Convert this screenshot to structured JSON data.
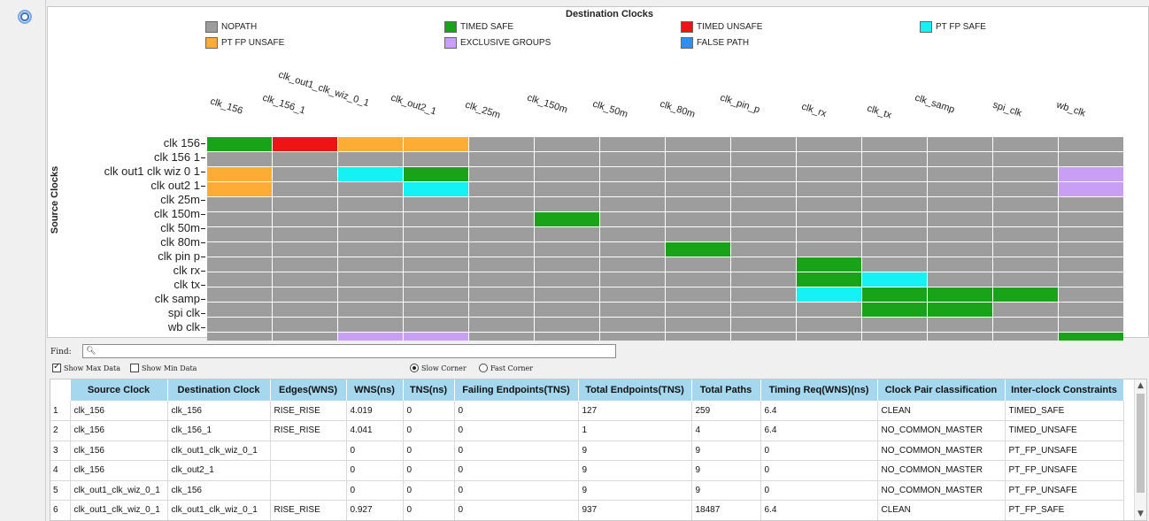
{
  "colors": {
    "nopath": "#9d9d9d",
    "timed_safe": "#18a319",
    "timed_unsafe": "#ef1414",
    "pt_fp_safe": "#14f2f5",
    "pt_fp_unsafe": "#fdad35",
    "exclusive_groups": "#c89ff5",
    "false_path": "#2e8ff0"
  },
  "legend": {
    "title": "Destination Clocks",
    "items": [
      {
        "key": "nopath",
        "label": "NOPATH"
      },
      {
        "key": "timed_safe",
        "label": "TIMED SAFE"
      },
      {
        "key": "timed_unsafe",
        "label": "TIMED UNSAFE"
      },
      {
        "key": "pt_fp_safe",
        "label": "PT FP SAFE"
      },
      {
        "key": "pt_fp_unsafe",
        "label": "PT FP UNSAFE"
      },
      {
        "key": "exclusive_groups",
        "label": "EXCLUSIVE GROUPS"
      },
      {
        "key": "false_path",
        "label": "FALSE PATH"
      }
    ]
  },
  "matrix": {
    "y_title": "Source Clocks",
    "columns": [
      "clk_156",
      "clk_156_1",
      "clk_out1_clk_wiz_0_1",
      "clk_out2_1",
      "clk_25m",
      "clk_150m",
      "clk_50m",
      "clk_80m",
      "clk_pin_p",
      "clk_rx",
      "clk_tx",
      "clk_samp",
      "spi_clk",
      "wb_clk"
    ],
    "rows": [
      "clk 156",
      "clk 156 1",
      "clk out1 clk wiz 0 1",
      "clk out2 1",
      "clk 25m",
      "clk 150m",
      "clk 50m",
      "clk 80m",
      "clk pin p",
      "clk rx",
      "clk tx",
      "clk samp",
      "spi clk",
      "wb clk"
    ],
    "cells": [
      [
        "timed_safe",
        "timed_unsafe",
        "pt_fp_unsafe",
        "pt_fp_unsafe",
        "nopath",
        "nopath",
        "nopath",
        "nopath",
        "nopath",
        "nopath",
        "nopath",
        "nopath",
        "nopath",
        "nopath"
      ],
      [
        "nopath",
        "nopath",
        "nopath",
        "nopath",
        "nopath",
        "nopath",
        "nopath",
        "nopath",
        "nopath",
        "nopath",
        "nopath",
        "nopath",
        "nopath",
        "nopath"
      ],
      [
        "pt_fp_unsafe",
        "nopath",
        "pt_fp_safe",
        "timed_safe",
        "nopath",
        "nopath",
        "nopath",
        "nopath",
        "nopath",
        "nopath",
        "nopath",
        "nopath",
        "nopath",
        "exclusive_groups"
      ],
      [
        "pt_fp_unsafe",
        "nopath",
        "nopath",
        "pt_fp_safe",
        "nopath",
        "nopath",
        "nopath",
        "nopath",
        "nopath",
        "nopath",
        "nopath",
        "nopath",
        "nopath",
        "exclusive_groups"
      ],
      [
        "nopath",
        "nopath",
        "nopath",
        "nopath",
        "nopath",
        "nopath",
        "nopath",
        "nopath",
        "nopath",
        "nopath",
        "nopath",
        "nopath",
        "nopath",
        "nopath"
      ],
      [
        "nopath",
        "nopath",
        "nopath",
        "nopath",
        "nopath",
        "timed_safe",
        "nopath",
        "nopath",
        "nopath",
        "nopath",
        "nopath",
        "nopath",
        "nopath",
        "nopath"
      ],
      [
        "nopath",
        "nopath",
        "nopath",
        "nopath",
        "nopath",
        "nopath",
        "nopath",
        "nopath",
        "nopath",
        "nopath",
        "nopath",
        "nopath",
        "nopath",
        "nopath"
      ],
      [
        "nopath",
        "nopath",
        "nopath",
        "nopath",
        "nopath",
        "nopath",
        "nopath",
        "timed_safe",
        "nopath",
        "nopath",
        "nopath",
        "nopath",
        "nopath",
        "nopath"
      ],
      [
        "nopath",
        "nopath",
        "nopath",
        "nopath",
        "nopath",
        "nopath",
        "nopath",
        "nopath",
        "nopath",
        "timed_safe",
        "nopath",
        "nopath",
        "nopath",
        "nopath"
      ],
      [
        "nopath",
        "nopath",
        "nopath",
        "nopath",
        "nopath",
        "nopath",
        "nopath",
        "nopath",
        "nopath",
        "timed_safe",
        "pt_fp_safe",
        "nopath",
        "nopath",
        "nopath"
      ],
      [
        "nopath",
        "nopath",
        "nopath",
        "nopath",
        "nopath",
        "nopath",
        "nopath",
        "nopath",
        "nopath",
        "pt_fp_safe",
        "timed_safe",
        "timed_safe",
        "timed_safe",
        "nopath"
      ],
      [
        "nopath",
        "nopath",
        "nopath",
        "nopath",
        "nopath",
        "nopath",
        "nopath",
        "nopath",
        "nopath",
        "nopath",
        "timed_safe",
        "timed_safe",
        "nopath",
        "nopath"
      ],
      [
        "nopath",
        "nopath",
        "nopath",
        "nopath",
        "nopath",
        "nopath",
        "nopath",
        "nopath",
        "nopath",
        "nopath",
        "nopath",
        "nopath",
        "nopath",
        "nopath"
      ],
      [
        "nopath",
        "nopath",
        "exclusive_groups",
        "exclusive_groups",
        "nopath",
        "nopath",
        "nopath",
        "nopath",
        "nopath",
        "nopath",
        "nopath",
        "nopath",
        "nopath",
        "timed_safe"
      ]
    ]
  },
  "filters": {
    "find_label": "Find:",
    "find_value": "",
    "show_max_label": "Show Max Data",
    "show_max_checked": true,
    "show_min_label": "Show Min Data",
    "show_min_checked": false,
    "slow_corner_label": "Slow Corner",
    "fast_corner_label": "Fast Corner",
    "selected_corner": "slow"
  },
  "table": {
    "headers": [
      "Source Clock",
      "Destination Clock",
      "Edges(WNS)",
      "WNS(ns)",
      "TNS(ns)",
      "Failing Endpoints(TNS)",
      "Total Endpoints(TNS)",
      "Total Paths",
      "Timing Req(WNS)(ns)",
      "Clock Pair classification",
      "Inter-clock Constraints"
    ],
    "rows": [
      [
        "1",
        "clk_156",
        "clk_156",
        "RISE_RISE",
        "4.019",
        "0",
        "0",
        "127",
        "259",
        "6.4",
        "CLEAN",
        "TIMED_SAFE"
      ],
      [
        "2",
        "clk_156",
        "clk_156_1",
        "RISE_RISE",
        "4.041",
        "0",
        "0",
        "1",
        "4",
        "6.4",
        "NO_COMMON_MASTER",
        "TIMED_UNSAFE"
      ],
      [
        "3",
        "clk_156",
        "clk_out1_clk_wiz_0_1",
        "",
        "0",
        "0",
        "0",
        "9",
        "9",
        "0",
        "NO_COMMON_MASTER",
        "PT_FP_UNSAFE"
      ],
      [
        "4",
        "clk_156",
        "clk_out2_1",
        "",
        "0",
        "0",
        "0",
        "9",
        "9",
        "0",
        "NO_COMMON_MASTER",
        "PT_FP_UNSAFE"
      ],
      [
        "5",
        "clk_out1_clk_wiz_0_1",
        "clk_156",
        "",
        "0",
        "0",
        "0",
        "9",
        "9",
        "0",
        "NO_COMMON_MASTER",
        "PT_FP_UNSAFE"
      ],
      [
        "6",
        "clk_out1_clk_wiz_0_1",
        "clk_out1_clk_wiz_0_1",
        "RISE_RISE",
        "0.927",
        "0",
        "0",
        "937",
        "18487",
        "6.4",
        "CLEAN",
        "PT_FP_SAFE"
      ]
    ]
  }
}
